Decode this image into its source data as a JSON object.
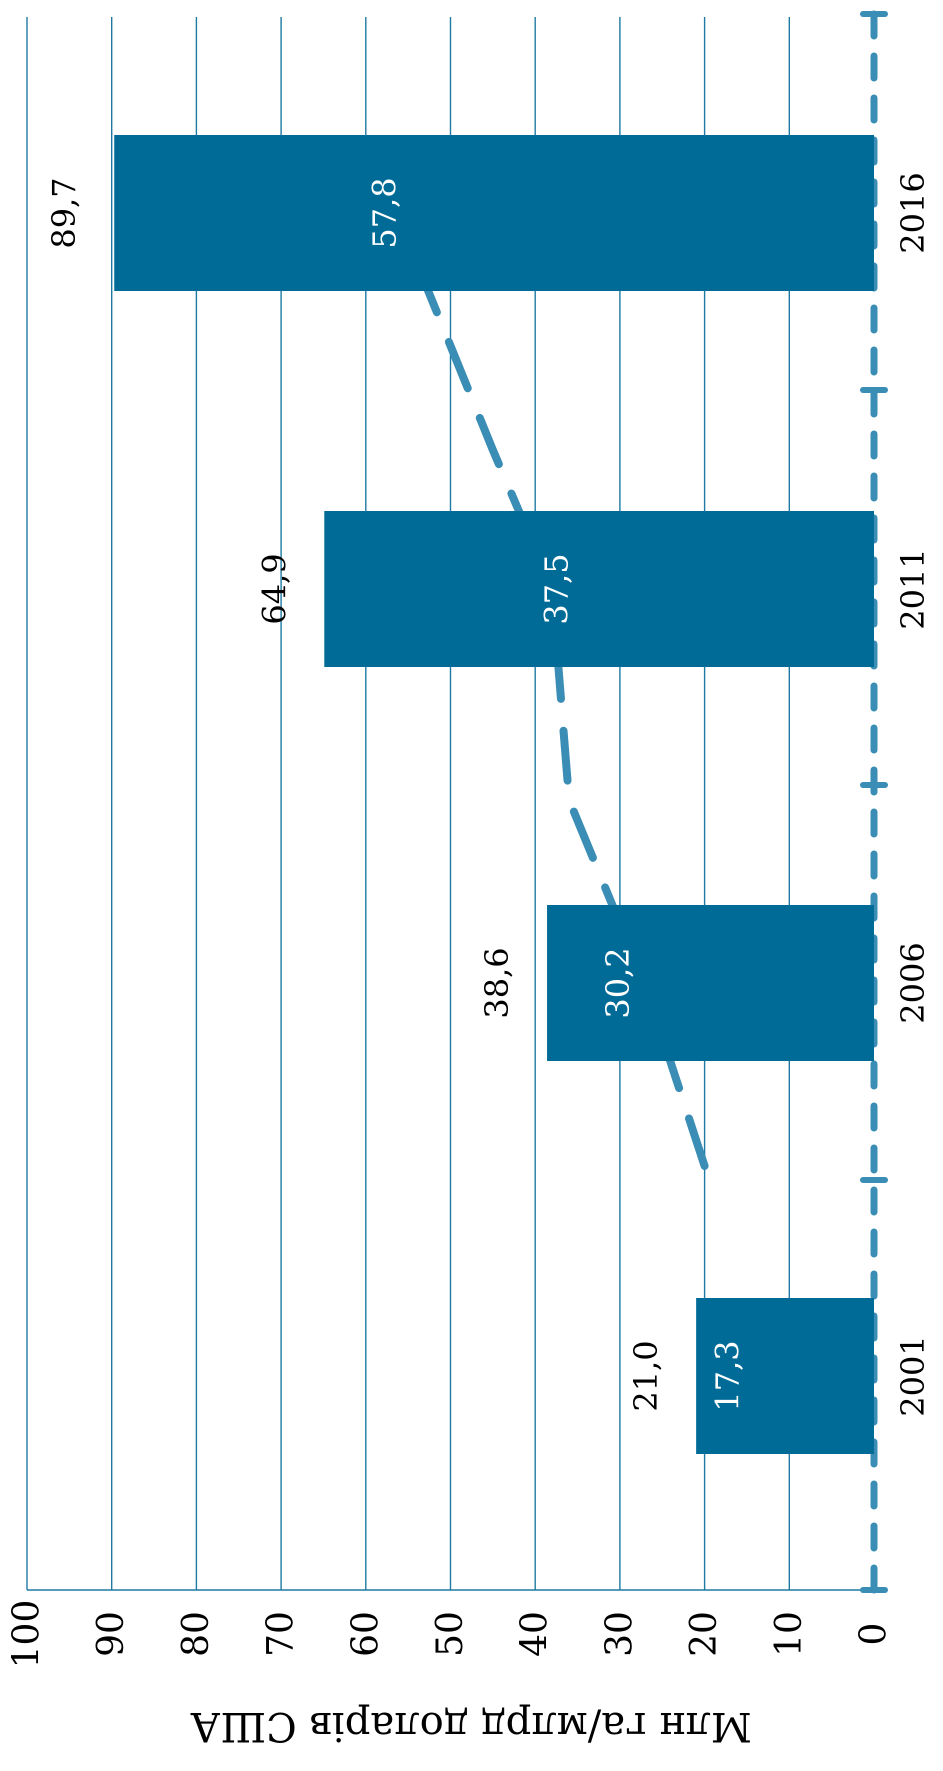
{
  "chart_data": {
    "type": "bar",
    "categories": [
      "2001",
      "2006",
      "2011",
      "2016"
    ],
    "series": [
      {
        "values": [
          21.0,
          38.6,
          64.9,
          89.7
        ],
        "labels": [
          "21,0",
          "38,6",
          "64,9",
          "89,7"
        ],
        "kind": "bar"
      },
      {
        "values": [
          17.3,
          30.2,
          37.5,
          57.8
        ],
        "labels": [
          "17,3",
          "30,2",
          "37,5",
          "57,8"
        ],
        "kind": "dashed-line"
      }
    ],
    "ylabel": "Млн га/млрд доларів США",
    "yticks": [
      "0",
      "10",
      "20",
      "30",
      "40",
      "50",
      "60",
      "70",
      "80",
      "90",
      "100"
    ],
    "ylim": [
      0,
      100
    ],
    "grid": true,
    "orientation": "rotated-90"
  },
  "colors": {
    "bar": "#006b96",
    "line": "#3a8db5",
    "grid": "#1f7aa3",
    "text": "#000000",
    "bar_label": "#ffffff"
  }
}
